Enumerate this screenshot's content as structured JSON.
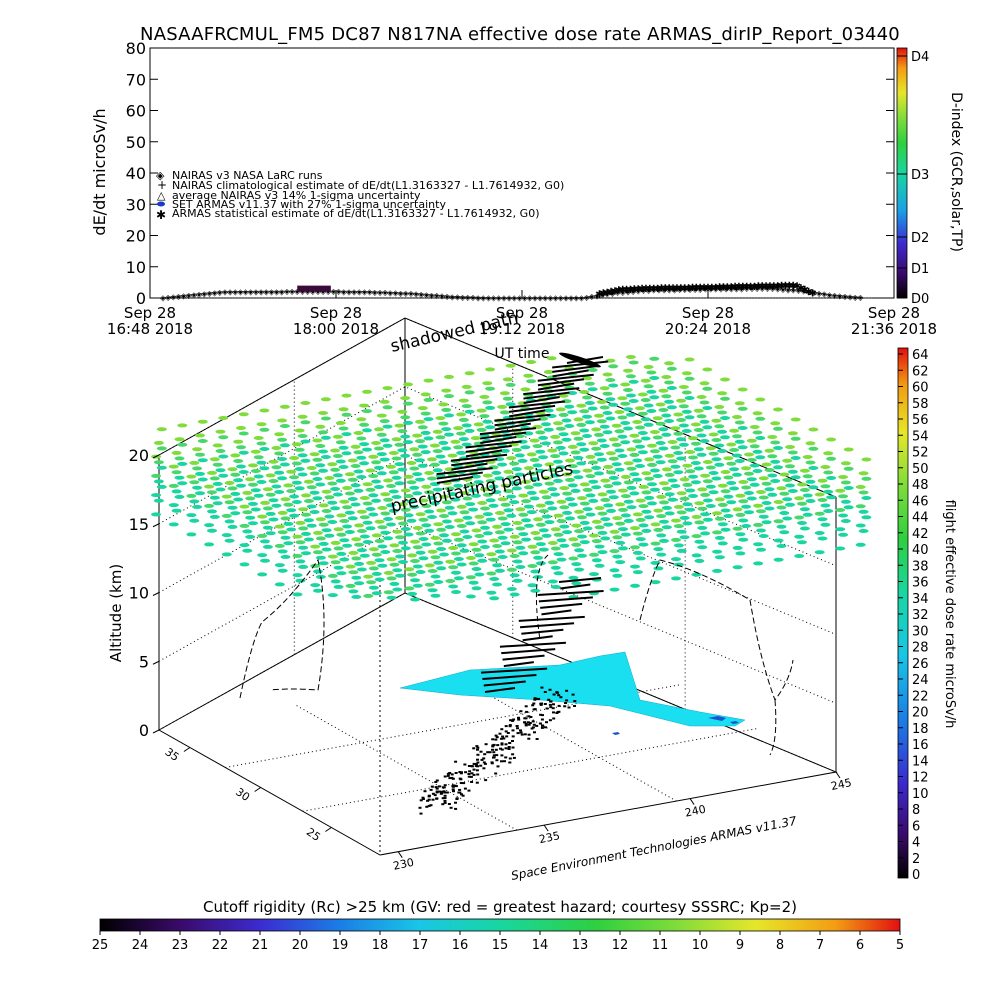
{
  "title": "NASAAFRCMUL_FM5 DC87 N817NA effective dose rate ARMAS_dirIP_Report_03440",
  "top_panel": {
    "ylabel": "dE/dt microSv/h",
    "yticks": [
      "0",
      "10",
      "20",
      "30",
      "40",
      "50",
      "60",
      "70",
      "80"
    ],
    "xticks": [
      {
        "day": "Sep 28",
        "time": "16:48 2018"
      },
      {
        "day": "Sep 28",
        "time": "18:00 2018"
      },
      {
        "day": "Sep 28",
        "time": "19:12 2018"
      },
      {
        "day": "Sep 28",
        "time": "20:24 2018"
      },
      {
        "day": "Sep 28",
        "time": "21:36 2018"
      }
    ],
    "xlabel": "UT time",
    "legend": [
      "NAIRAS v3 NASA LaRC runs",
      "NAIRAS climatological estimate of dE/dt(L1.3163327 - L1.7614932, G0)",
      "average NAIRAS v3 14% 1-sigma uncertainty",
      "SET ARMAS v11.37 with 27% 1-sigma uncertainty",
      "ARMAS statistical estimate of dE/dt(L1.3163327 - L1.7614932, G0)"
    ],
    "dindex_label": "D-index (GCR,solar,TP)",
    "dindex_ticks": [
      "D0",
      "D1",
      "D2",
      "D3",
      "D4"
    ]
  },
  "overlay_labels": {
    "shadowed_path": "shadowed path",
    "precipitating_particles": "precipitating particles"
  },
  "bottom_panel": {
    "zlabel": "Altitude (km)",
    "zticks": [
      "0",
      "5",
      "10",
      "15",
      "20"
    ],
    "lat_ticks": [
      "25",
      "30",
      "35"
    ],
    "lon_ticks": [
      "230",
      "235",
      "240",
      "245"
    ],
    "credit": "Space Environment Technologies ARMAS v11.37",
    "right_colorbar_label": "flight effective dose rate microSv/h",
    "right_colorbar_ticks": [
      "0",
      "2",
      "4",
      "6",
      "8",
      "10",
      "12",
      "14",
      "16",
      "18",
      "20",
      "22",
      "24",
      "26",
      "28",
      "30",
      "32",
      "34",
      "36",
      "38",
      "40",
      "42",
      "44",
      "46",
      "48",
      "50",
      "52",
      "54",
      "56",
      "58",
      "60",
      "62",
      "64"
    ]
  },
  "bottom_colorbar": {
    "title": "Cutoff rigidity (Rc) >25 km (GV: red = greatest hazard; courtesy SSSRC; Kp=2)",
    "ticks": [
      "25",
      "24",
      "23",
      "22",
      "21",
      "20",
      "19",
      "18",
      "17",
      "16",
      "15",
      "14",
      "13",
      "12",
      "11",
      "10",
      "9",
      "8",
      "7",
      "6",
      "5"
    ]
  },
  "chart_data": {
    "type": "line",
    "title": "NASAAFRCMUL_FM5 DC87 N817NA effective dose rate ARMAS_dirIP_Report_03440",
    "xlabel": "UT time",
    "ylabel": "dE/dt microSv/h",
    "ylim": [
      0,
      80
    ],
    "x_range": [
      "2018-09-28 16:48",
      "2018-09-28 21:36"
    ],
    "series": [
      {
        "name": "NAIRAS climatological estimate of dE/dt(L1.3163327 - L1.7614932, G0)",
        "x": [
          "16:53",
          "17:05",
          "17:15",
          "17:30",
          "17:45",
          "18:00",
          "18:15",
          "18:30",
          "18:45",
          "19:00",
          "19:12",
          "19:24",
          "19:36",
          "19:48",
          "20:00",
          "20:12",
          "20:24",
          "20:36",
          "20:48",
          "21:00",
          "21:12",
          "21:24"
        ],
        "values": [
          0.1,
          1.2,
          2.0,
          2.1,
          2.2,
          2.2,
          2.0,
          1.5,
          0.5,
          0.1,
          0.1,
          0.1,
          0.2,
          1.8,
          2.6,
          2.8,
          3.0,
          3.1,
          3.2,
          2.5,
          1.0,
          0.2
        ]
      },
      {
        "name": "ARMAS statistical estimate of dE/dt(L1.3163327 - L1.7614932, G0)",
        "x": [
          "19:42",
          "19:50",
          "20:00",
          "20:12",
          "20:24",
          "20:36",
          "20:48",
          "20:58",
          "21:05"
        ],
        "values": [
          1.5,
          2.8,
          3.2,
          3.4,
          3.5,
          3.8,
          4.0,
          4.2,
          1.5
        ]
      },
      {
        "name": "SET ARMAS v11.37 with 27% 1-sigma uncertainty",
        "x": [
          "17:45",
          "17:58"
        ],
        "values": [
          3.0,
          3.0
        ]
      }
    ],
    "bottom_3d": {
      "type": "3d-trajectory",
      "zlabel": "Altitude (km)",
      "zlim": [
        0,
        20
      ],
      "lat_ticks": [
        25,
        30,
        35
      ],
      "lon_ticks": [
        230,
        235,
        240,
        245
      ]
    }
  },
  "colors": {
    "grid_ellipses": "#19d6a0",
    "grid_ellipses_top": "#7fdc3a",
    "ground_shadow": "#19d6ee",
    "shadow_dark": "#1a55d0"
  }
}
